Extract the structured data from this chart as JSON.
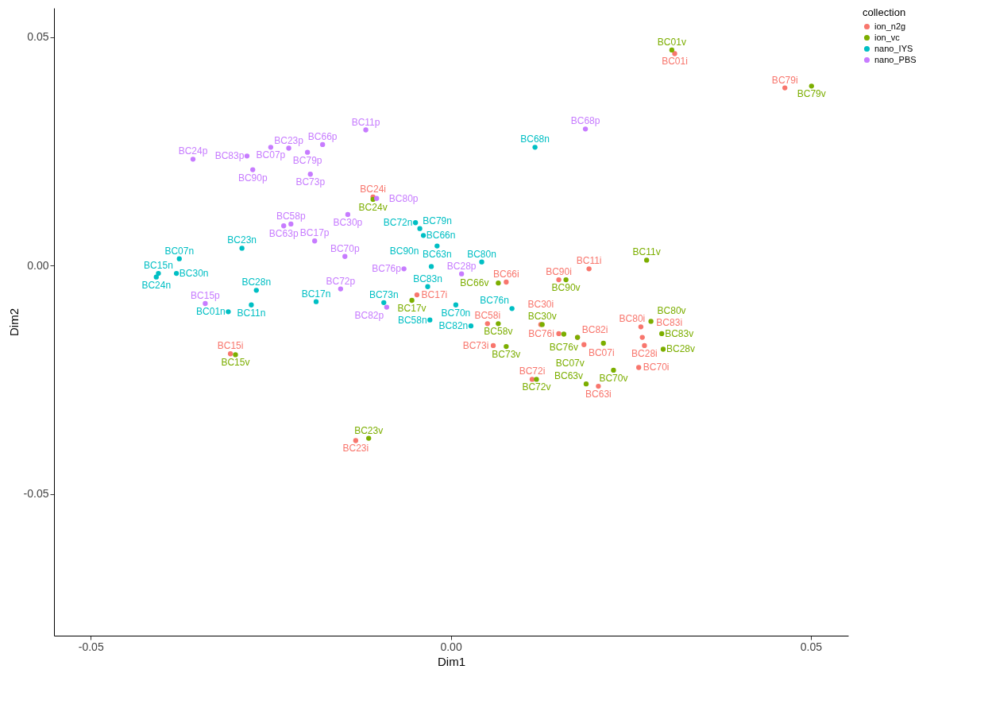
{
  "chart_data": {
    "type": "scatter",
    "xlabel": "Dim1",
    "ylabel": "Dim2",
    "legend_title": "collection",
    "legend": "right",
    "grid": false,
    "marker": "circle",
    "xlim": [
      -0.0551,
      0.0552
    ],
    "ylim": [
      -0.081,
      0.0564
    ],
    "xticks": [
      -0.05,
      {
        "value": 0,
        "label": "0.00"
      },
      0.05
    ],
    "yticks": [
      -0.05,
      {
        "value": 0,
        "label": "0.00"
      },
      0.05
    ],
    "series": [
      {
        "name": "ion_n2g",
        "color": "#f8766d",
        "x": [
          0.0311,
          0.0464,
          -0.0108,
          -0.0047,
          0.0077,
          0.015,
          0.0192,
          0.0051,
          0.0059,
          0.0113,
          0.015,
          0.0185,
          0.0264,
          0.0266,
          0.0269,
          0.0261,
          0.0205,
          0.0125,
          0.0176,
          -0.0306,
          -0.0132
        ],
        "values": [
          0.0464,
          0.0389,
          0.015,
          -0.0064,
          -0.0036,
          -0.0031,
          -0.0007,
          -0.0127,
          -0.0175,
          -0.0249,
          -0.0149,
          -0.0173,
          -0.0134,
          -0.0157,
          -0.0175,
          -0.0223,
          -0.0264,
          -0.0129,
          -0.0157,
          -0.0193,
          -0.0383
        ],
        "value_labels": [
          "BC01i",
          "BC79i",
          "BC24i",
          "BC17i",
          "BC66i",
          "BC90i",
          "BC11i",
          "BC58i",
          "BC73i",
          "BC72i",
          "BC76i",
          "BC07i",
          "BC80i",
          "BC83i",
          "BC28i",
          "BC70i",
          "BC63i",
          "BC30i",
          "BC82i",
          "BC15i",
          "BC23i"
        ]
      },
      {
        "name": "ion_vc",
        "color": "#7cae00",
        "x": [
          0.0307,
          0.0501,
          -0.0108,
          -0.0054,
          0.0066,
          0.016,
          0.0272,
          0.0066,
          0.0077,
          0.0119,
          0.0127,
          0.0157,
          0.0176,
          0.0212,
          0.0278,
          0.0293,
          0.0295,
          0.0226,
          0.0188,
          -0.0299,
          -0.0114
        ],
        "values": [
          0.0472,
          0.0393,
          0.0145,
          -0.0076,
          -0.0038,
          -0.0031,
          0.0012,
          -0.0127,
          -0.0177,
          -0.0249,
          -0.0129,
          -0.015,
          -0.0157,
          -0.017,
          -0.0122,
          -0.0149,
          -0.0183,
          -0.0229,
          -0.0259,
          -0.0195,
          -0.0378
        ],
        "value_labels": [
          "BC01v",
          "BC79v",
          "BC24v",
          "BC17v",
          "BC66v",
          "BC90v",
          "BC11v",
          "BC58v",
          "BC73v",
          "BC72v",
          "BC30v",
          "BC76v",
          null,
          "BC07v",
          "BC80v",
          "BC83v",
          "BC28v",
          "BC70v",
          "BC63v",
          "BC15v",
          "BC23v"
        ]
      },
      {
        "name": "nano_IYS",
        "color": "#00bfc4",
        "x": [
          0.0117,
          -0.0049,
          -0.0043,
          -0.0038,
          -0.0019,
          0.0043,
          -0.0027,
          -0.0032,
          -0.0093,
          0.0007,
          -0.0029,
          0.0028,
          0.0085,
          -0.0377,
          -0.029,
          -0.0406,
          -0.0409,
          -0.0381,
          -0.027,
          -0.0277,
          -0.0187,
          -0.0309
        ],
        "values": [
          0.0259,
          0.0094,
          0.0081,
          0.0066,
          0.0043,
          0.0008,
          -0.0002,
          -0.0046,
          -0.0081,
          -0.0086,
          -0.0119,
          -0.0132,
          -0.0094,
          0.0015,
          0.0038,
          -0.0017,
          -0.0025,
          -0.0017,
          -0.0054,
          -0.0086,
          -0.0079,
          -0.0101
        ],
        "value_labels": [
          "BC68n",
          "BC72n",
          "BC79n",
          "BC66n",
          "BC63n",
          "BC80n",
          "BC90n",
          "BC83n",
          "BC73n",
          "BC70n",
          "BC58n",
          "BC82n",
          "BC76n",
          "BC07n",
          "BC23n",
          "BC15n",
          "BC24n",
          "BC30n",
          "BC28n",
          "BC11n",
          "BC17n",
          "BC01n"
        ]
      },
      {
        "name": "nano_PBS",
        "color": "#c77cff",
        "x": [
          -0.0118,
          -0.025,
          -0.0225,
          -0.0178,
          -0.0358,
          -0.0283,
          -0.0199,
          -0.0275,
          -0.0195,
          -0.0103,
          -0.0143,
          -0.0222,
          -0.0232,
          -0.0189,
          -0.0147,
          -0.0065,
          0.0015,
          -0.0153,
          -0.0341,
          -0.0089,
          0.0187
        ],
        "values": [
          0.0297,
          0.0259,
          0.0257,
          0.0265,
          0.0233,
          0.024,
          0.0248,
          0.021,
          0.02,
          0.0147,
          0.0112,
          0.0091,
          0.0087,
          0.0054,
          0.002,
          -0.0007,
          -0.0018,
          -0.0051,
          -0.0083,
          -0.0091,
          0.0299
        ],
        "value_labels": [
          "BC11p",
          "BC07p",
          "BC23p",
          "BC66p",
          "BC24p",
          "BC83p",
          "BC79p",
          "BC90p",
          "BC73p",
          "BC80p",
          "BC30p",
          "BC58p",
          "BC63p",
          "BC17p",
          "BC70p",
          "BC76p",
          "BC28p",
          "BC72p",
          "BC15p",
          "BC82p",
          "BC68p"
        ]
      }
    ]
  }
}
